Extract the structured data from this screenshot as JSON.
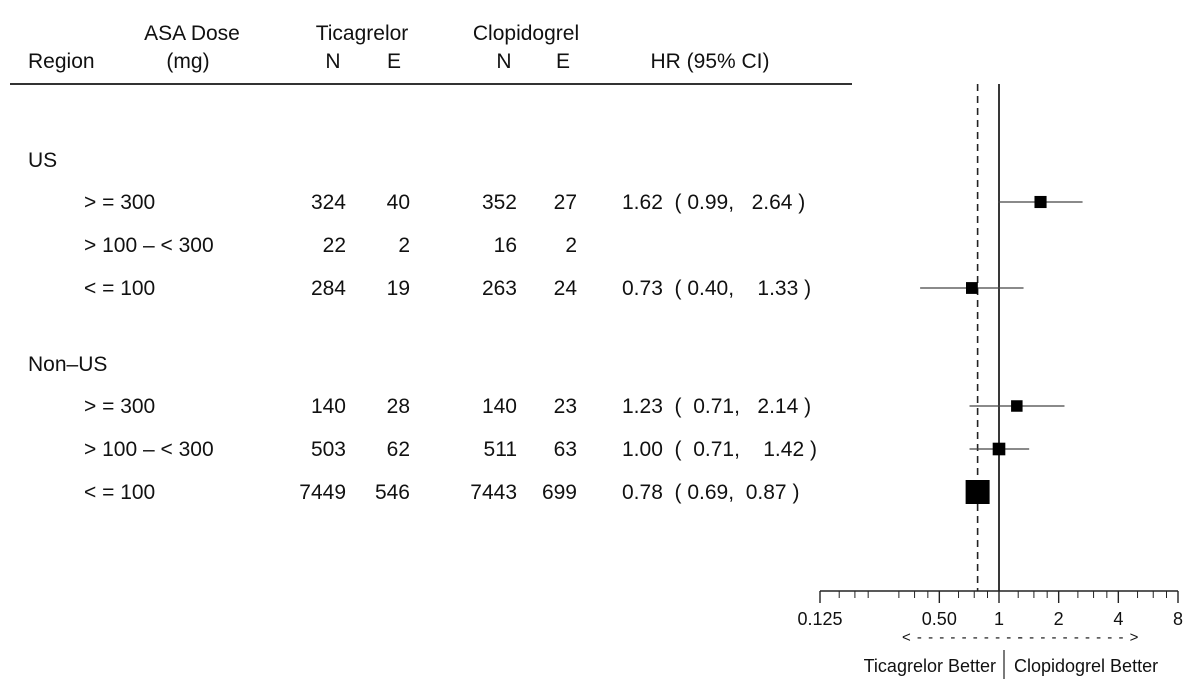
{
  "chart_data": {
    "type": "forest",
    "columns": {
      "region": "Region",
      "asa_dose": [
        "ASA Dose",
        "(mg)"
      ],
      "ticagrelor": "Ticagrelor",
      "clopidogrel": "Clopidogrel",
      "n": "N",
      "e": "E",
      "hr": "HR  (95% CI)"
    },
    "groups": [
      {
        "label": "US",
        "rows": [
          {
            "dose": "> = 300",
            "tic_n": "324",
            "tic_e": "40",
            "clo_n": "352",
            "clo_e": "27",
            "hr_text": "1.62  ( 0.99,   2.64 )",
            "hr": 1.62,
            "lo": 0.99,
            "hi": 2.64,
            "weight": 0.09
          },
          {
            "dose": "> 100  –  < 300",
            "tic_n": "22",
            "tic_e": "2",
            "clo_n": "16",
            "clo_e": "2",
            "hr_text": "",
            "hr": null,
            "lo": null,
            "hi": null,
            "weight": 0
          },
          {
            "dose": "< = 100",
            "tic_n": "284",
            "tic_e": "19",
            "clo_n": "263",
            "clo_e": "24",
            "hr_text": "0.73  ( 0.40,    1.33 )",
            "hr": 0.73,
            "lo": 0.4,
            "hi": 1.33,
            "weight": 0.08
          }
        ]
      },
      {
        "label": "Non–US",
        "rows": [
          {
            "dose": "> = 300",
            "tic_n": "140",
            "tic_e": "28",
            "clo_n": "140",
            "clo_e": "23",
            "hr_text": "1.23  (  0.71,   2.14 )",
            "hr": 1.23,
            "lo": 0.71,
            "hi": 2.14,
            "weight": 0.07
          },
          {
            "dose": "> 100  –  < 300",
            "tic_n": "503",
            "tic_e": "62",
            "clo_n": "511",
            "clo_e": "63",
            "hr_text": "1.00  (  0.71,    1.42 )",
            "hr": 1.0,
            "lo": 0.71,
            "hi": 1.42,
            "weight": 0.11
          },
          {
            "dose": "< = 100",
            "tic_n": "7449",
            "tic_e": "546",
            "clo_n": "7443",
            "clo_e": "699",
            "hr_text": "0.78  ( 0.69,  0.87 )",
            "hr": 0.78,
            "lo": 0.69,
            "hi": 0.87,
            "weight": 1.0
          }
        ]
      }
    ],
    "x_scale": "log2",
    "xlim": [
      0.125,
      8
    ],
    "x_ticks": [
      {
        "value": 0.125,
        "label": "0.125"
      },
      {
        "value": 0.5,
        "label": "0.50"
      },
      {
        "value": 1,
        "label": "1"
      },
      {
        "value": 2,
        "label": "2"
      },
      {
        "value": 4,
        "label": "4"
      },
      {
        "value": 8,
        "label": "8"
      }
    ],
    "null_line": 1,
    "overall_hr_line": 0.78,
    "arrow_left": "< - - - - - - - - - -",
    "arrow_right": "- - - - - - - - - - >",
    "favor_left": "Ticagrelor  Better",
    "favor_right": "Clopidogrel  Better"
  }
}
